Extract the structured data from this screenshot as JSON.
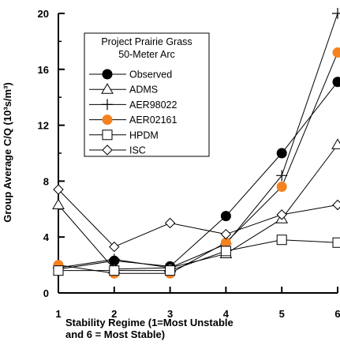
{
  "chart_data": {
    "type": "line",
    "ylabel": "Group Average C/Q (10³s/m³)",
    "xlabel_lines": [
      "Stability Regime (1=Most Unstable",
      "and 6 = Most Stable)"
    ],
    "xlim": [
      1,
      6
    ],
    "ylim": [
      0,
      20
    ],
    "x_ticks": [
      1,
      2,
      3,
      4,
      5,
      6
    ],
    "y_ticks": [
      0,
      4,
      8,
      12,
      16,
      20
    ],
    "grid": false,
    "legend": {
      "placement": "top-left",
      "title_lines": [
        "Project Prairie Grass",
        "50-Meter Arc"
      ]
    },
    "x": [
      1,
      2,
      3,
      4,
      5,
      6
    ],
    "series": [
      {
        "name": "Observed",
        "marker": "filled-circle",
        "color": "#000000",
        "values": [
          1.7,
          2.3,
          1.9,
          5.5,
          10.0,
          15.1
        ]
      },
      {
        "name": "ADMS",
        "marker": "triangle",
        "color": "#000000",
        "values": [
          6.3,
          1.7,
          1.8,
          2.8,
          5.3,
          10.6
        ]
      },
      {
        "name": "AER98022",
        "marker": "plus",
        "color": "#000000",
        "values": [
          1.8,
          2.4,
          1.8,
          3.5,
          8.4,
          20.0
        ]
      },
      {
        "name": "AER02161",
        "marker": "filled-circle",
        "color": "#f58220",
        "values": [
          2.0,
          1.4,
          1.4,
          3.6,
          7.6,
          17.2
        ]
      },
      {
        "name": "HPDM",
        "marker": "square",
        "color": "#000000",
        "values": [
          1.6,
          1.6,
          1.6,
          3.0,
          3.8,
          3.6
        ]
      },
      {
        "name": "ISC",
        "marker": "diamond",
        "color": "#000000",
        "values": [
          7.4,
          3.3,
          5.0,
          4.2,
          5.6,
          6.3
        ]
      }
    ]
  }
}
